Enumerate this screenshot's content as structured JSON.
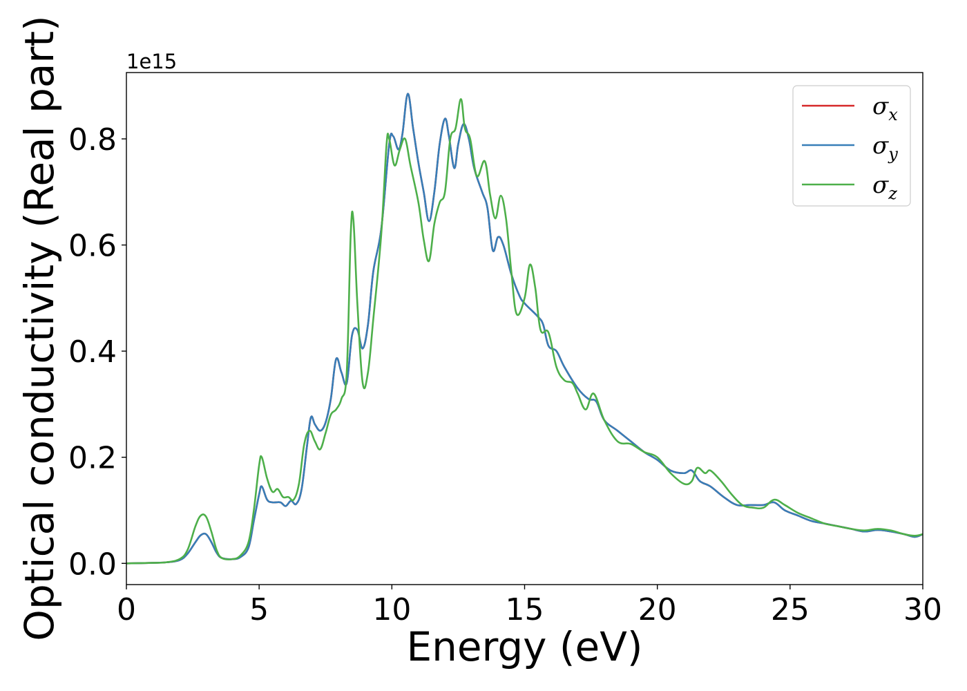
{
  "chart_data": {
    "type": "line",
    "xlabel": "Energy (eV)",
    "ylabel": "Optical conductivity (Real part)",
    "y_offset_label": "1e15",
    "xlim": [
      0,
      30
    ],
    "ylim": [
      -0.04,
      0.925
    ],
    "x_ticks": [
      0,
      5,
      10,
      15,
      20,
      25,
      30
    ],
    "x_tick_labels": [
      "0",
      "5",
      "10",
      "15",
      "20",
      "25",
      "30"
    ],
    "y_ticks": [
      0.0,
      0.2,
      0.4,
      0.6,
      0.8
    ],
    "y_tick_labels": [
      "0.0",
      "0.2",
      "0.4",
      "0.6",
      "0.8"
    ],
    "grid": false,
    "legend_position": "top-right",
    "series": [
      {
        "name": "σx",
        "legend_symbol": "σ",
        "legend_subscript": "x",
        "color": "#d62728",
        "points": [
          [
            0,
            0
          ],
          [
            1,
            0.001
          ],
          [
            1.5,
            0.002
          ],
          [
            2,
            0.006
          ],
          [
            2.3,
            0.018
          ],
          [
            2.6,
            0.04
          ],
          [
            2.8,
            0.053
          ],
          [
            3.0,
            0.055
          ],
          [
            3.2,
            0.04
          ],
          [
            3.4,
            0.02
          ],
          [
            3.6,
            0.01
          ],
          [
            4.0,
            0.008
          ],
          [
            4.3,
            0.012
          ],
          [
            4.6,
            0.03
          ],
          [
            4.8,
            0.08
          ],
          [
            5.0,
            0.13
          ],
          [
            5.1,
            0.145
          ],
          [
            5.3,
            0.12
          ],
          [
            5.5,
            0.115
          ],
          [
            5.8,
            0.115
          ],
          [
            6.0,
            0.108
          ],
          [
            6.2,
            0.118
          ],
          [
            6.4,
            0.112
          ],
          [
            6.6,
            0.14
          ],
          [
            6.8,
            0.22
          ],
          [
            6.95,
            0.275
          ],
          [
            7.1,
            0.262
          ],
          [
            7.3,
            0.25
          ],
          [
            7.5,
            0.265
          ],
          [
            7.7,
            0.31
          ],
          [
            7.9,
            0.385
          ],
          [
            8.1,
            0.36
          ],
          [
            8.3,
            0.34
          ],
          [
            8.5,
            0.43
          ],
          [
            8.7,
            0.44
          ],
          [
            8.9,
            0.405
          ],
          [
            9.1,
            0.45
          ],
          [
            9.3,
            0.55
          ],
          [
            9.6,
            0.63
          ],
          [
            9.9,
            0.79
          ],
          [
            10.05,
            0.805
          ],
          [
            10.25,
            0.78
          ],
          [
            10.4,
            0.81
          ],
          [
            10.6,
            0.885
          ],
          [
            10.8,
            0.82
          ],
          [
            11.0,
            0.755
          ],
          [
            11.2,
            0.7
          ],
          [
            11.4,
            0.645
          ],
          [
            11.6,
            0.7
          ],
          [
            11.8,
            0.79
          ],
          [
            12.0,
            0.838
          ],
          [
            12.15,
            0.805
          ],
          [
            12.35,
            0.745
          ],
          [
            12.5,
            0.79
          ],
          [
            12.7,
            0.828
          ],
          [
            12.9,
            0.8
          ],
          [
            13.1,
            0.745
          ],
          [
            13.4,
            0.7
          ],
          [
            13.6,
            0.67
          ],
          [
            13.8,
            0.59
          ],
          [
            14.0,
            0.615
          ],
          [
            14.2,
            0.6
          ],
          [
            14.5,
            0.545
          ],
          [
            14.8,
            0.505
          ],
          [
            15.0,
            0.49
          ],
          [
            15.5,
            0.465
          ],
          [
            15.7,
            0.45
          ],
          [
            15.9,
            0.41
          ],
          [
            16.2,
            0.4
          ],
          [
            16.5,
            0.37
          ],
          [
            17.0,
            0.33
          ],
          [
            17.4,
            0.31
          ],
          [
            17.7,
            0.305
          ],
          [
            18.0,
            0.27
          ],
          [
            18.5,
            0.25
          ],
          [
            19.0,
            0.23
          ],
          [
            19.5,
            0.21
          ],
          [
            20.0,
            0.195
          ],
          [
            20.5,
            0.175
          ],
          [
            21.0,
            0.17
          ],
          [
            21.3,
            0.175
          ],
          [
            21.6,
            0.155
          ],
          [
            22.0,
            0.145
          ],
          [
            22.5,
            0.125
          ],
          [
            23.0,
            0.11
          ],
          [
            23.5,
            0.11
          ],
          [
            24.0,
            0.11
          ],
          [
            24.4,
            0.115
          ],
          [
            24.8,
            0.1
          ],
          [
            25.3,
            0.09
          ],
          [
            25.8,
            0.08
          ],
          [
            26.3,
            0.075
          ],
          [
            26.8,
            0.07
          ],
          [
            27.3,
            0.065
          ],
          [
            27.8,
            0.06
          ],
          [
            28.3,
            0.063
          ],
          [
            28.8,
            0.06
          ],
          [
            29.3,
            0.055
          ],
          [
            29.7,
            0.05
          ],
          [
            30.0,
            0.055
          ]
        ]
      },
      {
        "name": "σy",
        "legend_symbol": "σ",
        "legend_subscript": "y",
        "color": "#377eb8",
        "points": [
          [
            0,
            0
          ],
          [
            1,
            0.001
          ],
          [
            1.5,
            0.002
          ],
          [
            2,
            0.006
          ],
          [
            2.3,
            0.018
          ],
          [
            2.6,
            0.04
          ],
          [
            2.8,
            0.053
          ],
          [
            3.0,
            0.055
          ],
          [
            3.2,
            0.04
          ],
          [
            3.4,
            0.02
          ],
          [
            3.6,
            0.01
          ],
          [
            4.0,
            0.008
          ],
          [
            4.3,
            0.012
          ],
          [
            4.6,
            0.03
          ],
          [
            4.8,
            0.08
          ],
          [
            5.0,
            0.13
          ],
          [
            5.1,
            0.145
          ],
          [
            5.3,
            0.12
          ],
          [
            5.5,
            0.115
          ],
          [
            5.8,
            0.115
          ],
          [
            6.0,
            0.108
          ],
          [
            6.2,
            0.118
          ],
          [
            6.4,
            0.112
          ],
          [
            6.6,
            0.14
          ],
          [
            6.8,
            0.22
          ],
          [
            6.95,
            0.275
          ],
          [
            7.1,
            0.262
          ],
          [
            7.3,
            0.25
          ],
          [
            7.5,
            0.265
          ],
          [
            7.7,
            0.31
          ],
          [
            7.9,
            0.385
          ],
          [
            8.1,
            0.36
          ],
          [
            8.3,
            0.34
          ],
          [
            8.5,
            0.43
          ],
          [
            8.7,
            0.44
          ],
          [
            8.9,
            0.405
          ],
          [
            9.1,
            0.45
          ],
          [
            9.3,
            0.55
          ],
          [
            9.6,
            0.63
          ],
          [
            9.9,
            0.79
          ],
          [
            10.05,
            0.805
          ],
          [
            10.25,
            0.78
          ],
          [
            10.4,
            0.81
          ],
          [
            10.6,
            0.885
          ],
          [
            10.8,
            0.82
          ],
          [
            11.0,
            0.755
          ],
          [
            11.2,
            0.7
          ],
          [
            11.4,
            0.645
          ],
          [
            11.6,
            0.7
          ],
          [
            11.8,
            0.79
          ],
          [
            12.0,
            0.838
          ],
          [
            12.15,
            0.805
          ],
          [
            12.35,
            0.745
          ],
          [
            12.5,
            0.79
          ],
          [
            12.7,
            0.828
          ],
          [
            12.9,
            0.8
          ],
          [
            13.1,
            0.745
          ],
          [
            13.4,
            0.7
          ],
          [
            13.6,
            0.67
          ],
          [
            13.8,
            0.59
          ],
          [
            14.0,
            0.615
          ],
          [
            14.2,
            0.6
          ],
          [
            14.5,
            0.545
          ],
          [
            14.8,
            0.505
          ],
          [
            15.0,
            0.49
          ],
          [
            15.5,
            0.465
          ],
          [
            15.7,
            0.45
          ],
          [
            15.9,
            0.41
          ],
          [
            16.2,
            0.4
          ],
          [
            16.5,
            0.37
          ],
          [
            17.0,
            0.33
          ],
          [
            17.4,
            0.31
          ],
          [
            17.7,
            0.305
          ],
          [
            18.0,
            0.27
          ],
          [
            18.5,
            0.25
          ],
          [
            19.0,
            0.23
          ],
          [
            19.5,
            0.21
          ],
          [
            20.0,
            0.195
          ],
          [
            20.5,
            0.175
          ],
          [
            21.0,
            0.17
          ],
          [
            21.3,
            0.175
          ],
          [
            21.6,
            0.155
          ],
          [
            22.0,
            0.145
          ],
          [
            22.5,
            0.125
          ],
          [
            23.0,
            0.11
          ],
          [
            23.5,
            0.11
          ],
          [
            24.0,
            0.11
          ],
          [
            24.4,
            0.115
          ],
          [
            24.8,
            0.1
          ],
          [
            25.3,
            0.09
          ],
          [
            25.8,
            0.08
          ],
          [
            26.3,
            0.075
          ],
          [
            26.8,
            0.07
          ],
          [
            27.3,
            0.065
          ],
          [
            27.8,
            0.06
          ],
          [
            28.3,
            0.063
          ],
          [
            28.8,
            0.06
          ],
          [
            29.3,
            0.055
          ],
          [
            29.7,
            0.05
          ],
          [
            30.0,
            0.055
          ]
        ]
      },
      {
        "name": "σz",
        "legend_symbol": "σ",
        "legend_subscript": "z",
        "color": "#4daf4a",
        "points": [
          [
            0,
            0
          ],
          [
            1,
            0.001
          ],
          [
            1.5,
            0.002
          ],
          [
            2,
            0.008
          ],
          [
            2.3,
            0.025
          ],
          [
            2.6,
            0.07
          ],
          [
            2.8,
            0.09
          ],
          [
            3.0,
            0.088
          ],
          [
            3.2,
            0.06
          ],
          [
            3.4,
            0.025
          ],
          [
            3.6,
            0.01
          ],
          [
            4.0,
            0.008
          ],
          [
            4.3,
            0.015
          ],
          [
            4.6,
            0.04
          ],
          [
            4.8,
            0.1
          ],
          [
            5.0,
            0.185
          ],
          [
            5.1,
            0.2
          ],
          [
            5.3,
            0.16
          ],
          [
            5.5,
            0.135
          ],
          [
            5.7,
            0.14
          ],
          [
            5.9,
            0.125
          ],
          [
            6.1,
            0.125
          ],
          [
            6.3,
            0.12
          ],
          [
            6.5,
            0.15
          ],
          [
            6.7,
            0.225
          ],
          [
            6.9,
            0.25
          ],
          [
            7.1,
            0.23
          ],
          [
            7.3,
            0.215
          ],
          [
            7.5,
            0.245
          ],
          [
            7.7,
            0.28
          ],
          [
            7.9,
            0.29
          ],
          [
            8.1,
            0.31
          ],
          [
            8.3,
            0.36
          ],
          [
            8.45,
            0.62
          ],
          [
            8.55,
            0.648
          ],
          [
            8.7,
            0.49
          ],
          [
            8.9,
            0.34
          ],
          [
            9.1,
            0.36
          ],
          [
            9.3,
            0.46
          ],
          [
            9.6,
            0.62
          ],
          [
            9.8,
            0.79
          ],
          [
            9.9,
            0.8
          ],
          [
            10.1,
            0.75
          ],
          [
            10.3,
            0.78
          ],
          [
            10.5,
            0.8
          ],
          [
            10.7,
            0.75
          ],
          [
            11.0,
            0.68
          ],
          [
            11.2,
            0.61
          ],
          [
            11.4,
            0.57
          ],
          [
            11.6,
            0.64
          ],
          [
            11.8,
            0.68
          ],
          [
            12.0,
            0.7
          ],
          [
            12.2,
            0.8
          ],
          [
            12.4,
            0.82
          ],
          [
            12.6,
            0.875
          ],
          [
            12.75,
            0.82
          ],
          [
            12.95,
            0.8
          ],
          [
            13.2,
            0.73
          ],
          [
            13.5,
            0.758
          ],
          [
            13.7,
            0.695
          ],
          [
            13.9,
            0.65
          ],
          [
            14.1,
            0.693
          ],
          [
            14.3,
            0.65
          ],
          [
            14.5,
            0.55
          ],
          [
            14.7,
            0.47
          ],
          [
            15.0,
            0.5
          ],
          [
            15.2,
            0.563
          ],
          [
            15.4,
            0.52
          ],
          [
            15.6,
            0.44
          ],
          [
            15.9,
            0.435
          ],
          [
            16.2,
            0.37
          ],
          [
            16.5,
            0.345
          ],
          [
            16.8,
            0.34
          ],
          [
            17.0,
            0.32
          ],
          [
            17.3,
            0.29
          ],
          [
            17.6,
            0.32
          ],
          [
            18.0,
            0.27
          ],
          [
            18.5,
            0.23
          ],
          [
            19.0,
            0.225
          ],
          [
            19.5,
            0.21
          ],
          [
            20.0,
            0.2
          ],
          [
            20.5,
            0.17
          ],
          [
            21.0,
            0.15
          ],
          [
            21.3,
            0.155
          ],
          [
            21.5,
            0.18
          ],
          [
            21.8,
            0.17
          ],
          [
            22.0,
            0.175
          ],
          [
            22.4,
            0.155
          ],
          [
            22.8,
            0.13
          ],
          [
            23.2,
            0.11
          ],
          [
            23.6,
            0.105
          ],
          [
            24.0,
            0.105
          ],
          [
            24.4,
            0.12
          ],
          [
            24.8,
            0.11
          ],
          [
            25.3,
            0.095
          ],
          [
            25.8,
            0.085
          ],
          [
            26.3,
            0.075
          ],
          [
            26.8,
            0.07
          ],
          [
            27.3,
            0.065
          ],
          [
            27.8,
            0.062
          ],
          [
            28.3,
            0.065
          ],
          [
            28.8,
            0.062
          ],
          [
            29.3,
            0.055
          ],
          [
            29.7,
            0.052
          ],
          [
            30.0,
            0.055
          ]
        ]
      }
    ]
  }
}
